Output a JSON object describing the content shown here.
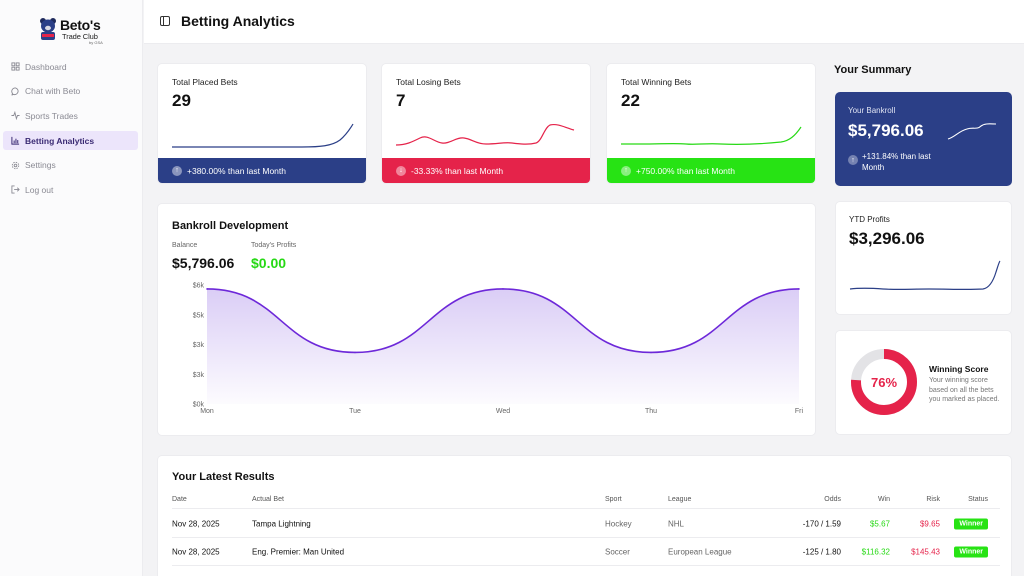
{
  "brand": {
    "title": "Beto's",
    "subtitle": "Trade Club",
    "tiny": "by GSA"
  },
  "nav": [
    {
      "label": "Dashboard",
      "icon": "dashboard-icon"
    },
    {
      "label": "Chat with Beto",
      "icon": "chat-icon"
    },
    {
      "label": "Sports Trades",
      "icon": "activity-icon"
    },
    {
      "label": "Betting Analytics",
      "icon": "bar-chart-icon",
      "active": true
    },
    {
      "label": "Settings",
      "icon": "gear-icon"
    },
    {
      "label": "Log out",
      "icon": "logout-icon"
    }
  ],
  "header": {
    "title": "Betting Analytics"
  },
  "stats": [
    {
      "label": "Total Placed Bets",
      "value": "29",
      "change": "+380.00% than last Month",
      "arrow": "↑"
    },
    {
      "label": "Total Losing Bets",
      "value": "7",
      "change": "-33.33% than last Month",
      "arrow": "↓"
    },
    {
      "label": "Total Winning Bets",
      "value": "22",
      "change": "+750.00% than last Month",
      "arrow": "↑"
    }
  ],
  "summary": {
    "title": "Your Summary",
    "bankroll": {
      "label": "Your Bankroll",
      "value": "$5,796.06",
      "change": "+131.84% than last Month"
    },
    "ytd": {
      "label": "YTD Profits",
      "value": "$3,296.06"
    },
    "score": {
      "value": "76%",
      "fraction": 0.76,
      "title": "Winning Score",
      "desc": "Your winning score based on all the bets you marked as placed."
    }
  },
  "bankroll_chart": {
    "title": "Bankroll Development",
    "balance_label": "Balance",
    "balance_value": "$5,796.06",
    "profits_label": "Today's Profits",
    "profits_value": "$0.00"
  },
  "chart_data": {
    "type": "area",
    "title": "Bankroll Development",
    "categories": [
      "Mon",
      "Tue",
      "Wed",
      "Thu",
      "Fri"
    ],
    "values": [
      5800,
      2600,
      5800,
      2600,
      5800
    ],
    "y_ticks": [
      "$0k",
      "$3k",
      "$3k",
      "$5k",
      "$6k"
    ],
    "ylim": [
      0,
      6000
    ],
    "series_color": "#6d28d9"
  },
  "results": {
    "title": "Your Latest Results",
    "columns": {
      "date": "Date",
      "bet": "Actual Bet",
      "sport": "Sport",
      "league": "League",
      "odds": "Odds",
      "win": "Win",
      "risk": "Risk",
      "status": "Status"
    },
    "rows": [
      {
        "date": "Nov 28, 2025",
        "bet": "Tampa Lightning",
        "sport": "Hockey",
        "league": "NHL",
        "odds": "-170 / 1.59",
        "win": "$5.67",
        "risk": "$9.65",
        "status": "Winner"
      },
      {
        "date": "Nov 28, 2025",
        "bet": "Eng. Premier: Man United",
        "sport": "Soccer",
        "league": "European League",
        "odds": "-125 / 1.80",
        "win": "$116.32",
        "risk": "$145.43",
        "status": "Winner"
      }
    ]
  },
  "colors": {
    "blue": "#2b3f87",
    "red": "#e5234a",
    "green": "#27e314",
    "purple": "#6d28d9"
  }
}
